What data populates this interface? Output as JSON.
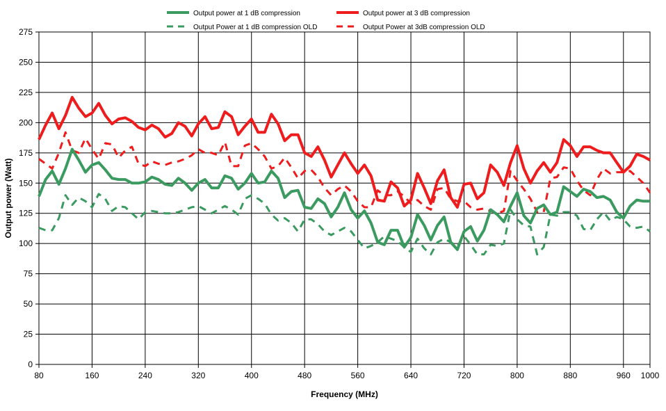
{
  "chart_data": {
    "type": "line",
    "title": "",
    "xlabel": "Frequency (MHz)",
    "ylabel": "Output power (Watt)",
    "xlim": [
      80,
      1000
    ],
    "ylim": [
      0,
      275
    ],
    "x_ticks": [
      80,
      160,
      240,
      320,
      400,
      480,
      560,
      640,
      720,
      800,
      880,
      960,
      1000
    ],
    "y_ticks": [
      0,
      25,
      50,
      75,
      100,
      125,
      150,
      175,
      200,
      225,
      250,
      275
    ],
    "grid": true,
    "legend_position": "top",
    "series": [
      {
        "name": "Output power at 1 dB compression",
        "color": "#3a9a5f",
        "style": "solid",
        "x": [
          80,
          90,
          100,
          110,
          120,
          130,
          140,
          150,
          160,
          170,
          180,
          190,
          200,
          210,
          220,
          230,
          240,
          250,
          260,
          270,
          280,
          290,
          300,
          310,
          320,
          330,
          340,
          350,
          360,
          370,
          380,
          390,
          400,
          410,
          420,
          430,
          440,
          450,
          460,
          470,
          480,
          490,
          500,
          510,
          520,
          530,
          540,
          550,
          560,
          570,
          580,
          590,
          600,
          610,
          620,
          630,
          640,
          650,
          660,
          670,
          680,
          690,
          700,
          710,
          720,
          730,
          740,
          750,
          760,
          770,
          780,
          790,
          800,
          810,
          820,
          830,
          840,
          850,
          860,
          870,
          880,
          890,
          900,
          910,
          920,
          930,
          940,
          950,
          960,
          970,
          980,
          990,
          1000
        ],
        "y": [
          139,
          153,
          160,
          149,
          162,
          178,
          169,
          159,
          165,
          167,
          161,
          154,
          153,
          153,
          150,
          150,
          151,
          155,
          153,
          149,
          148,
          154,
          150,
          144,
          150,
          153,
          146,
          146,
          156,
          154,
          145,
          150,
          158,
          150,
          151,
          160,
          154,
          138,
          143,
          144,
          130,
          129,
          137,
          133,
          122,
          130,
          142,
          128,
          121,
          127,
          117,
          101,
          99,
          111,
          111,
          97,
          105,
          124,
          115,
          103,
          115,
          122,
          101,
          95,
          110,
          114,
          102,
          111,
          128,
          124,
          118,
          131,
          142,
          123,
          117,
          129,
          132,
          124,
          126,
          147,
          143,
          139,
          145,
          143,
          138,
          139,
          136,
          126,
          121,
          131,
          136,
          135,
          135
        ]
      },
      {
        "name": "Output power at 3 dB compression",
        "color": "#ee1c1c",
        "style": "solid",
        "x": [
          80,
          90,
          100,
          110,
          120,
          130,
          140,
          150,
          160,
          170,
          180,
          190,
          200,
          210,
          220,
          230,
          240,
          250,
          260,
          270,
          280,
          290,
          300,
          310,
          320,
          330,
          340,
          350,
          360,
          370,
          380,
          390,
          400,
          410,
          420,
          430,
          440,
          450,
          460,
          470,
          480,
          490,
          500,
          510,
          520,
          530,
          540,
          550,
          560,
          570,
          580,
          590,
          600,
          610,
          620,
          630,
          640,
          650,
          660,
          670,
          680,
          690,
          700,
          710,
          720,
          730,
          740,
          750,
          760,
          770,
          780,
          790,
          800,
          810,
          820,
          830,
          840,
          850,
          860,
          870,
          880,
          890,
          900,
          910,
          920,
          930,
          940,
          950,
          960,
          970,
          980,
          990,
          1000
        ],
        "y": [
          186,
          198,
          208,
          195,
          206,
          221,
          212,
          205,
          208,
          216,
          206,
          199,
          203,
          204,
          201,
          196,
          194,
          198,
          195,
          188,
          191,
          200,
          197,
          189,
          199,
          205,
          195,
          196,
          209,
          205,
          190,
          197,
          203,
          192,
          192,
          207,
          199,
          185,
          190,
          190,
          175,
          172,
          180,
          169,
          155,
          165,
          175,
          166,
          158,
          165,
          156,
          136,
          135,
          151,
          146,
          131,
          136,
          158,
          146,
          133,
          152,
          161,
          138,
          130,
          149,
          150,
          137,
          142,
          165,
          159,
          148,
          167,
          181,
          162,
          150,
          160,
          167,
          159,
          167,
          186,
          181,
          172,
          180,
          180,
          177,
          175,
          175,
          167,
          159,
          164,
          174,
          172,
          169
        ]
      },
      {
        "name": "Output Power at 1 dB compression OLD",
        "color": "#3a9a5f",
        "style": "dashed",
        "x": [
          80,
          90,
          100,
          110,
          120,
          130,
          140,
          150,
          160,
          170,
          180,
          190,
          200,
          210,
          220,
          230,
          240,
          250,
          260,
          270,
          280,
          290,
          300,
          310,
          320,
          330,
          340,
          350,
          360,
          370,
          380,
          390,
          400,
          410,
          420,
          430,
          440,
          450,
          460,
          470,
          480,
          490,
          500,
          510,
          520,
          530,
          540,
          550,
          560,
          570,
          580,
          590,
          600,
          610,
          620,
          630,
          640,
          650,
          660,
          670,
          680,
          690,
          700,
          710,
          720,
          730,
          740,
          750,
          760,
          770,
          780,
          790,
          800,
          810,
          820,
          830,
          840,
          850,
          860,
          870,
          880,
          890,
          900,
          910,
          920,
          930,
          940,
          950,
          960,
          970,
          980,
          990,
          1000
        ],
        "y": [
          113,
          111,
          111,
          121,
          140,
          132,
          138,
          135,
          130,
          141,
          137,
          127,
          131,
          130,
          125,
          120,
          126,
          127,
          126,
          125,
          125,
          126,
          128,
          130,
          131,
          128,
          125,
          128,
          131,
          128,
          124,
          137,
          140,
          137,
          133,
          124,
          119,
          121,
          117,
          110,
          120,
          120,
          116,
          110,
          107,
          110,
          113,
          110,
          103,
          96,
          98,
          101,
          106,
          104,
          102,
          97,
          93,
          104,
          96,
          91,
          101,
          104,
          101,
          98,
          106,
          99,
          91,
          91,
          99,
          98,
          100,
          128,
          120,
          115,
          114,
          91,
          97,
          124,
          123,
          126,
          126,
          123,
          112,
          111,
          120,
          126,
          119,
          122,
          120,
          114,
          113,
          114,
          110
        ]
      },
      {
        "name": "Output Power at 3dB compression OLD",
        "color": "#ee1c1c",
        "style": "dashed",
        "x": [
          80,
          90,
          100,
          110,
          120,
          130,
          140,
          150,
          160,
          170,
          180,
          190,
          200,
          210,
          220,
          230,
          240,
          250,
          260,
          270,
          280,
          290,
          300,
          310,
          320,
          330,
          340,
          350,
          360,
          370,
          380,
          390,
          400,
          410,
          420,
          430,
          440,
          450,
          460,
          470,
          480,
          490,
          500,
          510,
          520,
          530,
          540,
          550,
          560,
          570,
          580,
          590,
          600,
          610,
          620,
          630,
          640,
          650,
          660,
          670,
          680,
          690,
          700,
          710,
          720,
          730,
          740,
          750,
          760,
          770,
          780,
          790,
          800,
          810,
          820,
          830,
          840,
          850,
          860,
          870,
          880,
          890,
          900,
          910,
          920,
          930,
          940,
          950,
          960,
          970,
          980,
          990,
          1000
        ],
        "y": [
          170,
          166,
          162,
          175,
          192,
          177,
          175,
          187,
          178,
          170,
          183,
          182,
          171,
          177,
          180,
          166,
          164,
          168,
          166,
          165,
          167,
          168,
          170,
          173,
          178,
          175,
          175,
          173,
          184,
          164,
          164,
          181,
          183,
          178,
          172,
          162,
          164,
          171,
          163,
          154,
          160,
          161,
          155,
          146,
          140,
          145,
          148,
          143,
          135,
          130,
          130,
          144,
          140,
          140,
          143,
          139,
          133,
          136,
          131,
          128,
          145,
          146,
          137,
          135,
          135,
          130,
          128,
          129,
          127,
          125,
          127,
          160,
          152,
          145,
          137,
          126,
          126,
          154,
          155,
          163,
          162,
          152,
          144,
          140,
          153,
          162,
          158,
          159,
          159,
          160,
          155,
          150,
          142
        ]
      }
    ]
  }
}
